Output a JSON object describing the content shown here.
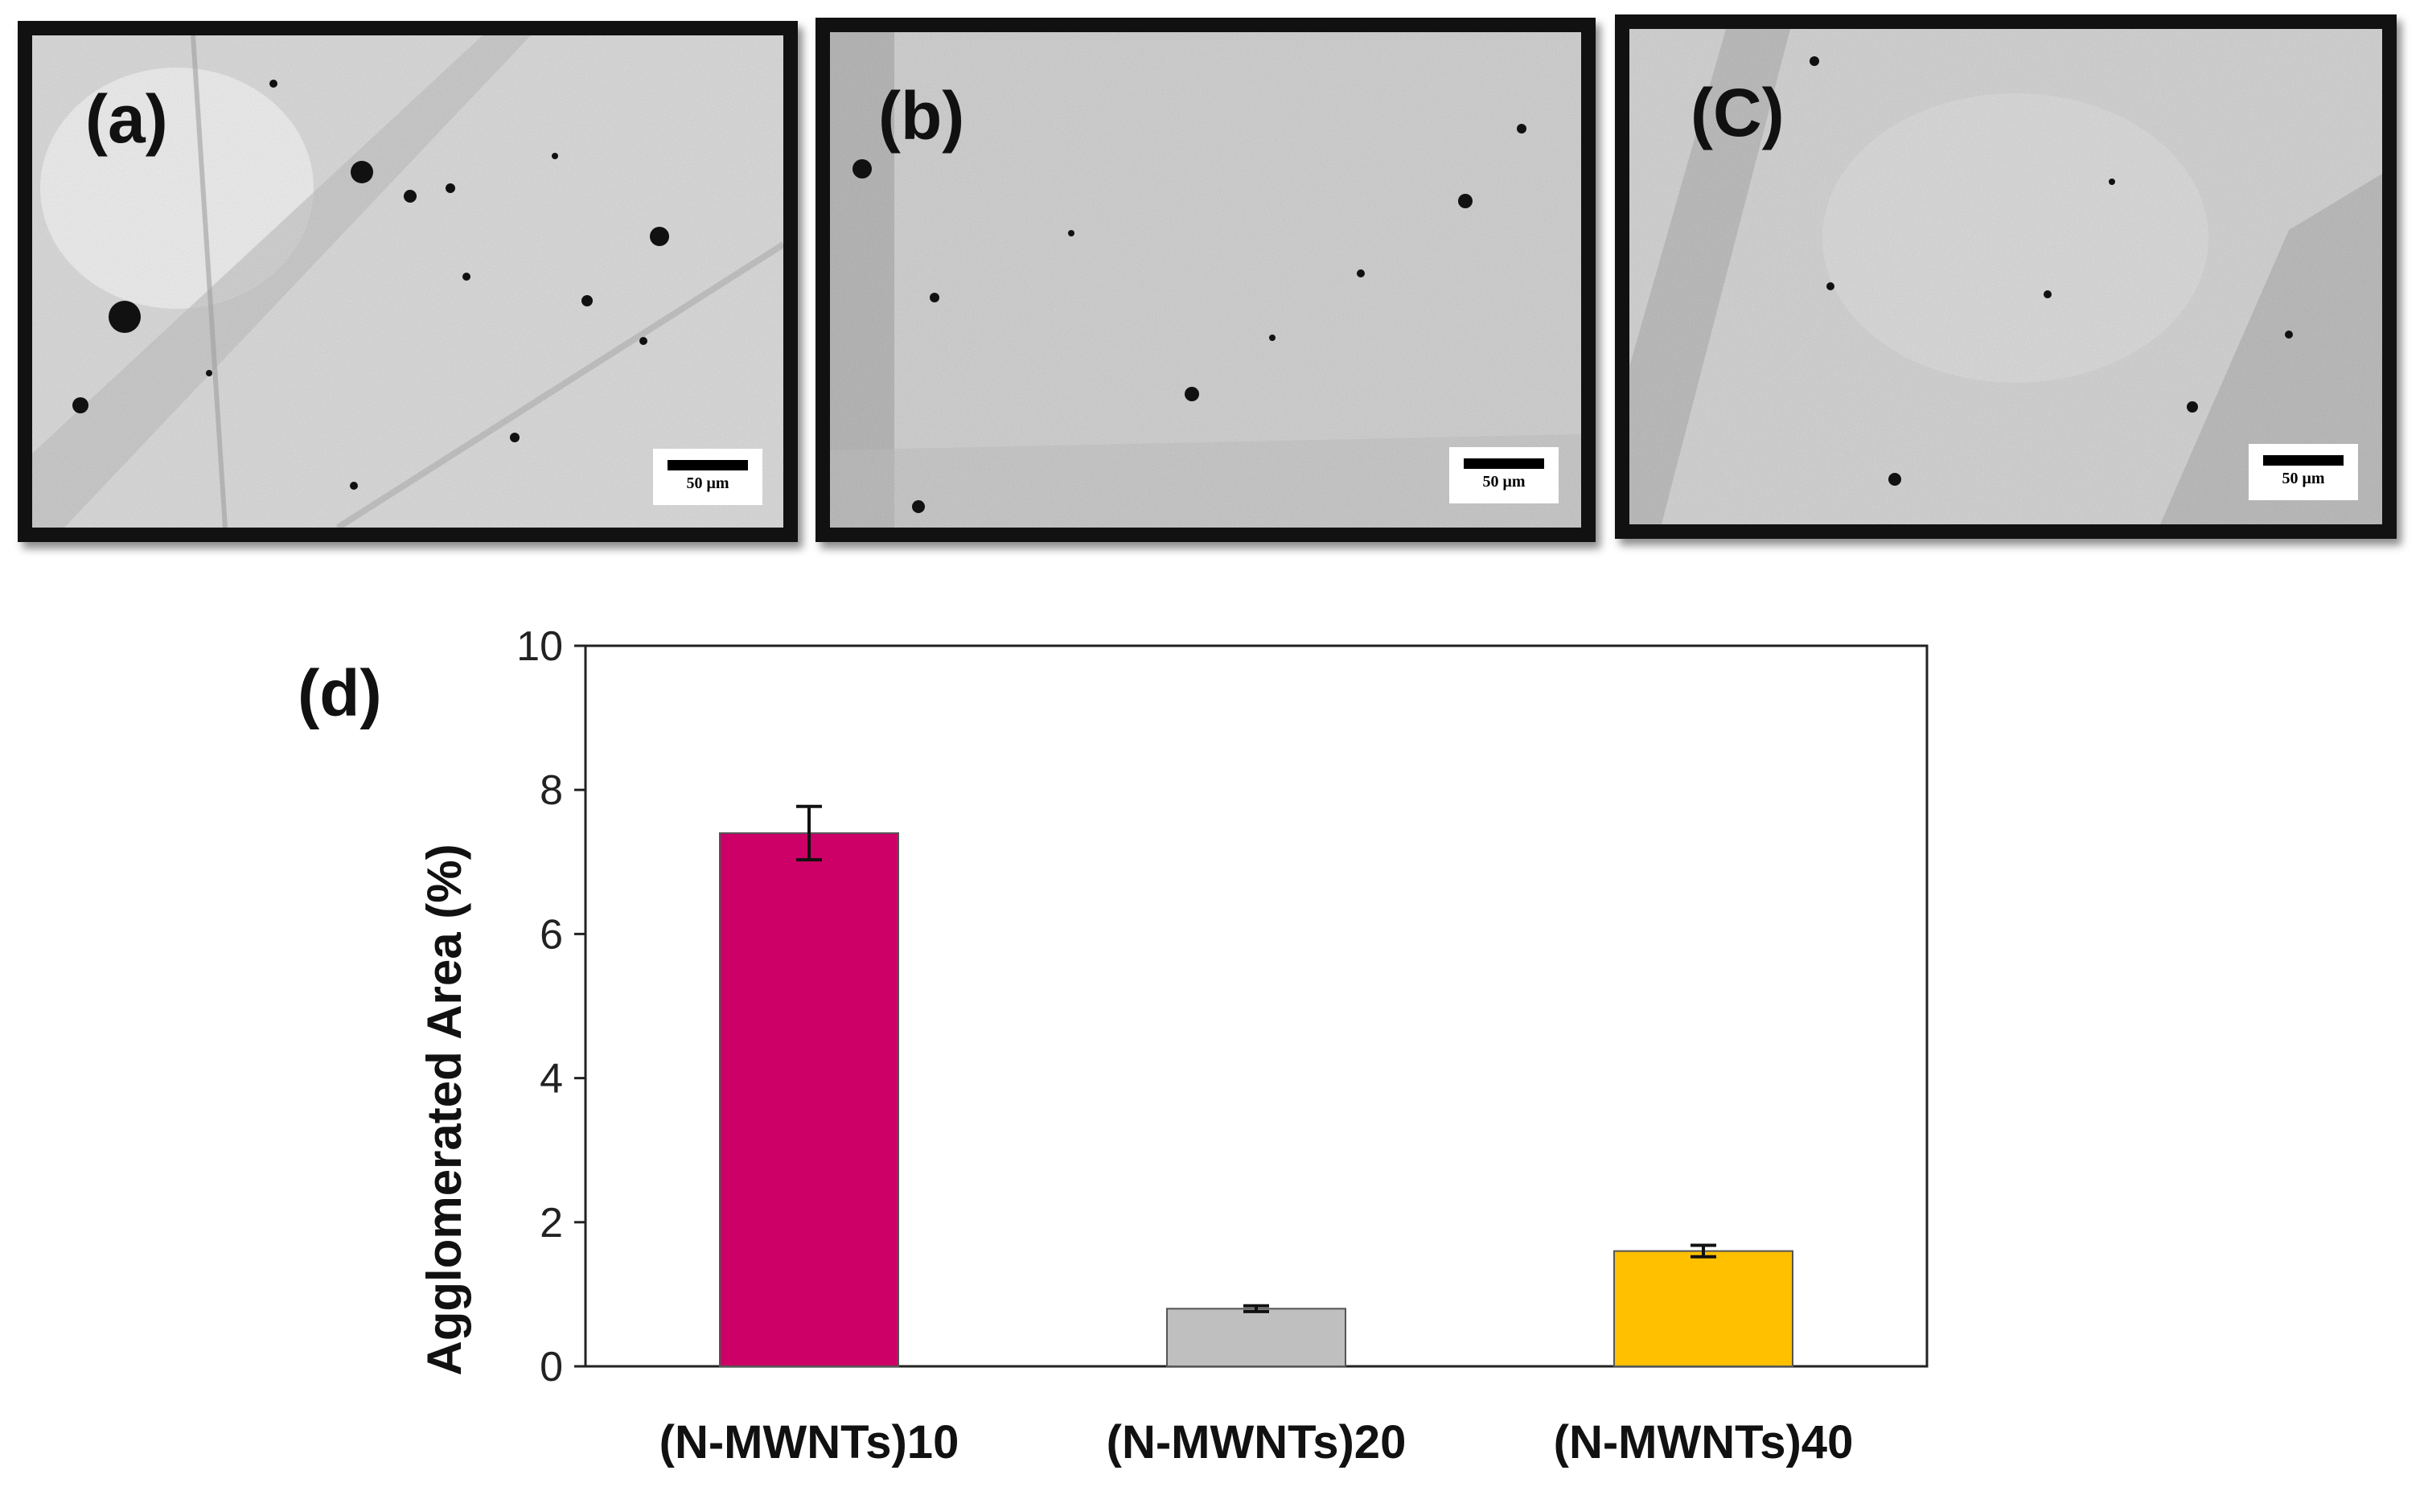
{
  "micrographs": [
    {
      "label": "(a)",
      "scale": "50 μm"
    },
    {
      "label": "(b)",
      "scale": "50 μm"
    },
    {
      "label": "(C)",
      "scale": "50 μm"
    }
  ],
  "chart_data": {
    "type": "bar",
    "panel_label": "(d)",
    "categories": [
      "(N-MWNTs)10",
      "(N-MWNTs)20",
      "(N-MWNTs)40"
    ],
    "values": [
      7.4,
      0.8,
      1.6
    ],
    "errors": [
      0.37,
      0.04,
      0.08
    ],
    "colors": [
      "#cc0066",
      "#bfbfbf",
      "#ffc000"
    ],
    "xlabel": "",
    "ylabel": "Agglomerated Area (%)",
    "ylim": [
      0,
      10
    ],
    "yticks": [
      0,
      2,
      4,
      6,
      8,
      10
    ],
    "grid": false
  }
}
